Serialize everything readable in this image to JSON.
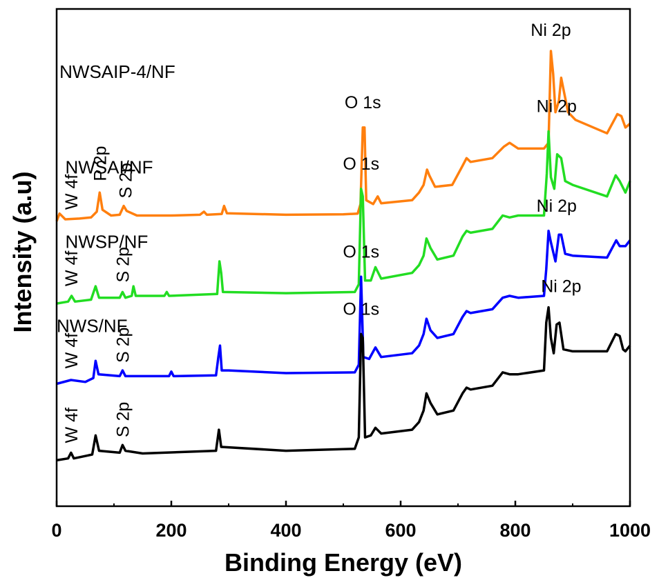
{
  "chart_data": {
    "type": "line",
    "xlabel": "Binding Energy (eV)",
    "ylabel": "Intensity (a.u)",
    "xlim": [
      0,
      1000
    ],
    "xticks": [
      0,
      200,
      400,
      600,
      800,
      1000
    ],
    "xtick_labels": [
      "0",
      "200",
      "400",
      "600",
      "800",
      "1000"
    ],
    "y_ticks_shown": false,
    "grid": false,
    "legend": "none (curves labeled directly)",
    "series": [
      {
        "name": "NWSAIP-4/NF",
        "color": "#ff7f0e",
        "baseline": 7.4,
        "points": [
          [
            0,
            7.45
          ],
          [
            5,
            7.65
          ],
          [
            15,
            7.5
          ],
          [
            40,
            7.52
          ],
          [
            60,
            7.55
          ],
          [
            70,
            7.7
          ],
          [
            75,
            8.2
          ],
          [
            80,
            7.75
          ],
          [
            95,
            7.6
          ],
          [
            110,
            7.62
          ],
          [
            117,
            7.85
          ],
          [
            122,
            7.72
          ],
          [
            140,
            7.6
          ],
          [
            200,
            7.6
          ],
          [
            250,
            7.62
          ],
          [
            257,
            7.7
          ],
          [
            262,
            7.62
          ],
          [
            288,
            7.64
          ],
          [
            292,
            7.85
          ],
          [
            297,
            7.66
          ],
          [
            400,
            7.62
          ],
          [
            500,
            7.63
          ],
          [
            525,
            7.65
          ],
          [
            530,
            7.9
          ],
          [
            534,
            9.9
          ],
          [
            537,
            9.9
          ],
          [
            540,
            8.0
          ],
          [
            552,
            7.9
          ],
          [
            560,
            8.1
          ],
          [
            566,
            7.92
          ],
          [
            620,
            8.0
          ],
          [
            632,
            8.2
          ],
          [
            640,
            8.4
          ],
          [
            646,
            8.8
          ],
          [
            650,
            8.65
          ],
          [
            660,
            8.35
          ],
          [
            690,
            8.4
          ],
          [
            708,
            8.9
          ],
          [
            715,
            9.1
          ],
          [
            722,
            9.0
          ],
          [
            760,
            9.1
          ],
          [
            780,
            9.4
          ],
          [
            790,
            9.5
          ],
          [
            805,
            9.35
          ],
          [
            850,
            9.35
          ],
          [
            858,
            9.5
          ],
          [
            862,
            11.9
          ],
          [
            866,
            11.3
          ],
          [
            870,
            10.3
          ],
          [
            876,
            10.6
          ],
          [
            880,
            11.2
          ],
          [
            884,
            10.9
          ],
          [
            892,
            10.3
          ],
          [
            905,
            10.1
          ],
          [
            960,
            9.75
          ],
          [
            978,
            10.25
          ],
          [
            985,
            10.2
          ],
          [
            992,
            9.9
          ],
          [
            1000,
            10.0
          ]
        ]
      },
      {
        "name": "NWSAI/NF",
        "color": "#22dd22",
        "baseline": 5.3,
        "points": [
          [
            0,
            5.3
          ],
          [
            20,
            5.35
          ],
          [
            26,
            5.5
          ],
          [
            32,
            5.35
          ],
          [
            60,
            5.4
          ],
          [
            68,
            5.75
          ],
          [
            74,
            5.45
          ],
          [
            110,
            5.45
          ],
          [
            115,
            5.6
          ],
          [
            120,
            5.45
          ],
          [
            131,
            5.5
          ],
          [
            134,
            5.75
          ],
          [
            138,
            5.5
          ],
          [
            188,
            5.5
          ],
          [
            192,
            5.6
          ],
          [
            196,
            5.5
          ],
          [
            280,
            5.55
          ],
          [
            284,
            6.4
          ],
          [
            287,
            6.1
          ],
          [
            290,
            5.6
          ],
          [
            400,
            5.57
          ],
          [
            520,
            5.6
          ],
          [
            527,
            5.8
          ],
          [
            531,
            8.3
          ],
          [
            534,
            8.1
          ],
          [
            538,
            5.9
          ],
          [
            548,
            5.9
          ],
          [
            556,
            6.25
          ],
          [
            566,
            5.95
          ],
          [
            620,
            6.1
          ],
          [
            632,
            6.3
          ],
          [
            640,
            6.55
          ],
          [
            645,
            7.0
          ],
          [
            652,
            6.75
          ],
          [
            664,
            6.45
          ],
          [
            692,
            6.55
          ],
          [
            708,
            7.05
          ],
          [
            715,
            7.2
          ],
          [
            722,
            7.15
          ],
          [
            760,
            7.25
          ],
          [
            778,
            7.6
          ],
          [
            790,
            7.55
          ],
          [
            805,
            7.6
          ],
          [
            850,
            7.6
          ],
          [
            855,
            8.7
          ],
          [
            858,
            9.8
          ],
          [
            862,
            8.6
          ],
          [
            868,
            8.3
          ],
          [
            873,
            9.2
          ],
          [
            880,
            9.1
          ],
          [
            887,
            8.5
          ],
          [
            900,
            8.4
          ],
          [
            960,
            8.1
          ],
          [
            975,
            8.65
          ],
          [
            982,
            8.5
          ],
          [
            992,
            8.2
          ],
          [
            1000,
            8.5
          ]
        ]
      },
      {
        "name": "NWSP/NF",
        "color": "#0000ff",
        "baseline": 3.2,
        "points": [
          [
            0,
            3.2
          ],
          [
            25,
            3.3
          ],
          [
            50,
            3.25
          ],
          [
            64,
            3.35
          ],
          [
            68,
            3.8
          ],
          [
            73,
            3.45
          ],
          [
            110,
            3.4
          ],
          [
            115,
            3.55
          ],
          [
            120,
            3.4
          ],
          [
            196,
            3.4
          ],
          [
            200,
            3.52
          ],
          [
            204,
            3.4
          ],
          [
            278,
            3.42
          ],
          [
            282,
            3.9
          ],
          [
            285,
            4.2
          ],
          [
            288,
            3.55
          ],
          [
            300,
            3.55
          ],
          [
            400,
            3.48
          ],
          [
            520,
            3.5
          ],
          [
            527,
            3.7
          ],
          [
            531,
            6.0
          ],
          [
            535,
            3.9
          ],
          [
            545,
            3.85
          ],
          [
            556,
            4.15
          ],
          [
            566,
            3.9
          ],
          [
            620,
            4.0
          ],
          [
            632,
            4.2
          ],
          [
            640,
            4.5
          ],
          [
            645,
            4.9
          ],
          [
            652,
            4.6
          ],
          [
            664,
            4.4
          ],
          [
            692,
            4.5
          ],
          [
            708,
            4.95
          ],
          [
            715,
            5.1
          ],
          [
            722,
            5.05
          ],
          [
            760,
            5.15
          ],
          [
            778,
            5.45
          ],
          [
            790,
            5.5
          ],
          [
            805,
            5.45
          ],
          [
            850,
            5.5
          ],
          [
            854,
            6.2
          ],
          [
            858,
            7.2
          ],
          [
            862,
            6.9
          ],
          [
            866,
            6.65
          ],
          [
            870,
            6.4
          ],
          [
            876,
            7.1
          ],
          [
            880,
            7.1
          ],
          [
            887,
            6.6
          ],
          [
            900,
            6.55
          ],
          [
            960,
            6.5
          ],
          [
            976,
            6.95
          ],
          [
            982,
            6.8
          ],
          [
            992,
            6.8
          ],
          [
            1000,
            6.95
          ]
        ]
      },
      {
        "name": "NWS/NF",
        "color": "#000000",
        "baseline": 1.2,
        "points": [
          [
            0,
            1.2
          ],
          [
            20,
            1.25
          ],
          [
            25,
            1.4
          ],
          [
            30,
            1.25
          ],
          [
            62,
            1.35
          ],
          [
            68,
            1.85
          ],
          [
            74,
            1.45
          ],
          [
            110,
            1.4
          ],
          [
            115,
            1.6
          ],
          [
            120,
            1.45
          ],
          [
            150,
            1.38
          ],
          [
            278,
            1.45
          ],
          [
            283,
            2.0
          ],
          [
            287,
            1.55
          ],
          [
            400,
            1.45
          ],
          [
            520,
            1.5
          ],
          [
            527,
            1.8
          ],
          [
            531,
            4.5
          ],
          [
            534,
            4.4
          ],
          [
            538,
            1.8
          ],
          [
            548,
            1.85
          ],
          [
            556,
            2.05
          ],
          [
            566,
            1.9
          ],
          [
            620,
            2.0
          ],
          [
            632,
            2.2
          ],
          [
            640,
            2.5
          ],
          [
            645,
            2.95
          ],
          [
            652,
            2.7
          ],
          [
            664,
            2.4
          ],
          [
            692,
            2.5
          ],
          [
            708,
            2.95
          ],
          [
            715,
            3.1
          ],
          [
            722,
            3.05
          ],
          [
            760,
            3.15
          ],
          [
            778,
            3.5
          ],
          [
            790,
            3.45
          ],
          [
            805,
            3.45
          ],
          [
            850,
            3.55
          ],
          [
            854,
            4.8
          ],
          [
            858,
            5.2
          ],
          [
            862,
            4.4
          ],
          [
            867,
            4.0
          ],
          [
            872,
            4.75
          ],
          [
            877,
            4.8
          ],
          [
            884,
            4.1
          ],
          [
            900,
            4.05
          ],
          [
            960,
            4.05
          ],
          [
            975,
            4.5
          ],
          [
            982,
            4.45
          ],
          [
            988,
            4.1
          ],
          [
            992,
            4.05
          ],
          [
            1000,
            4.2
          ]
        ]
      }
    ],
    "annotations": [
      {
        "series": "NWSAIP-4/NF",
        "text": "Ni 2p",
        "x": 862,
        "y": 12.3,
        "rotated": false
      },
      {
        "series": "NWSAIP-4/NF",
        "text": "O 1s",
        "x": 534,
        "y": 10.4,
        "rotated": false
      },
      {
        "series": "NWSAIP-4/NF",
        "text": "W 4f",
        "x": 25,
        "y": 7.75,
        "rotated": true
      },
      {
        "series": "NWSAIP-4/NF",
        "text": "P 2p",
        "x": 75,
        "y": 8.5,
        "rotated": true
      },
      {
        "series": "NWSAIP-4/NF",
        "text": "S 2p",
        "x": 120,
        "y": 8.05,
        "rotated": true
      },
      {
        "series": "NWSAI/NF",
        "text": "Ni 2p",
        "x": 872,
        "y": 10.3,
        "rotated": false
      },
      {
        "series": "NWSAI/NF",
        "text": "O 1s",
        "x": 531,
        "y": 8.8,
        "rotated": false
      },
      {
        "series": "NWSAI/NF",
        "text": "W 4f",
        "x": 25,
        "y": 5.75,
        "rotated": true
      },
      {
        "series": "NWSAI/NF",
        "text": "S 2p",
        "x": 115,
        "y": 5.85,
        "rotated": true
      },
      {
        "series": "NWSP/NF",
        "text": "Ni 2p",
        "x": 872,
        "y": 7.7,
        "rotated": false
      },
      {
        "series": "NWSP/NF",
        "text": "O 1s",
        "x": 531,
        "y": 6.5,
        "rotated": false
      },
      {
        "series": "NWSP/NF",
        "text": "W 4f",
        "x": 25,
        "y": 3.6,
        "rotated": true
      },
      {
        "series": "NWSP/NF",
        "text": "S 2p",
        "x": 115,
        "y": 3.75,
        "rotated": true
      },
      {
        "series": "NWS/NF",
        "text": "Ni 2p",
        "x": 880,
        "y": 5.6,
        "rotated": false
      },
      {
        "series": "NWS/NF",
        "text": "O 1s",
        "x": 531,
        "y": 5.0,
        "rotated": false
      },
      {
        "series": "NWS/NF",
        "text": "W 4f",
        "x": 25,
        "y": 1.65,
        "rotated": true
      },
      {
        "series": "NWS/NF",
        "text": "S 2p",
        "x": 115,
        "y": 1.8,
        "rotated": true
      }
    ],
    "series_labels": [
      {
        "text": "NWSAIP-4/NF",
        "x": 5,
        "y": 11.2
      },
      {
        "text": "NWSAI/NF",
        "x": 15,
        "y": 8.7
      },
      {
        "text": "NWSP/NF",
        "x": 15,
        "y": 6.75
      },
      {
        "text": "NWS/NF",
        "x": 0,
        "y": 4.55
      }
    ],
    "ylim": [
      0,
      13
    ]
  }
}
